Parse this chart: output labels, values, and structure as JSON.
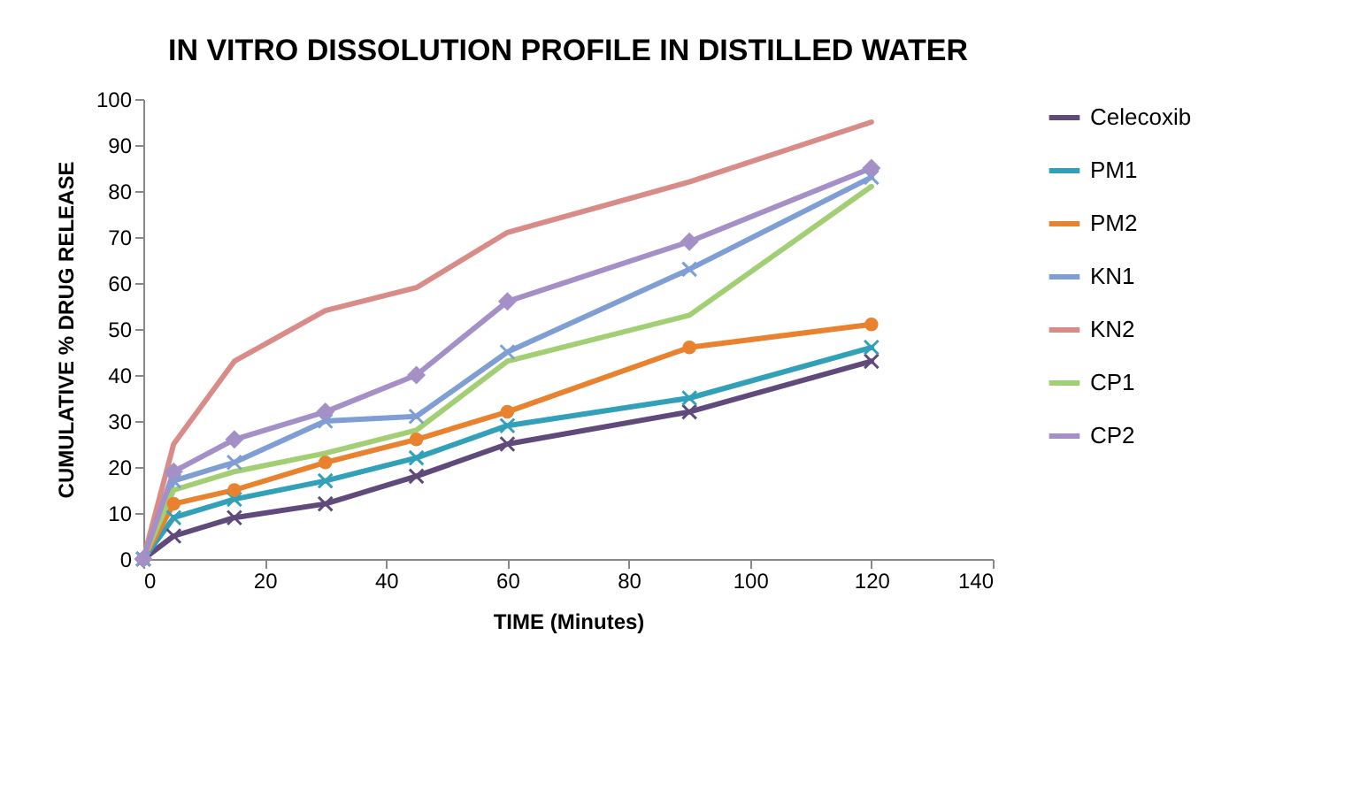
{
  "chart_data": {
    "type": "line",
    "title": "IN VITRO DISSOLUTION PROFILE IN DISTILLED WATER",
    "xlabel": "TIME (Minutes)",
    "ylabel": "CUMULATIVE  %  DRUG RELEASE",
    "x": [
      0,
      5,
      15,
      30,
      45,
      60,
      90,
      120
    ],
    "series": [
      {
        "name": "Celecoxib",
        "color": "#604a7b",
        "marker": "cross",
        "values": [
          0,
          5,
          9,
          12,
          18,
          25,
          32,
          43
        ]
      },
      {
        "name": "PM1",
        "color": "#31a0b8",
        "marker": "cross",
        "values": [
          0,
          9,
          13,
          17,
          22,
          29,
          35,
          46
        ]
      },
      {
        "name": "PM2",
        "color": "#e8822f",
        "marker": "circle",
        "values": [
          0,
          12,
          15,
          21,
          26,
          32,
          46,
          51
        ]
      },
      {
        "name": "KN1",
        "color": "#7f9fd4",
        "marker": "cross",
        "values": [
          0,
          17,
          21,
          30,
          31,
          45,
          63,
          83
        ]
      },
      {
        "name": "KN2",
        "color": "#d98b88",
        "marker": "none",
        "values": [
          0,
          25,
          43,
          54,
          59,
          71,
          82,
          95
        ]
      },
      {
        "name": "CP1",
        "color": "#a3cf74",
        "marker": "none",
        "values": [
          0,
          15,
          19,
          23,
          28,
          43,
          53,
          81
        ]
      },
      {
        "name": "CP2",
        "color": "#a48fc6",
        "marker": "diamond",
        "values": [
          0,
          19,
          26,
          32,
          40,
          56,
          69,
          85
        ]
      }
    ],
    "xlim": [
      0,
      140
    ],
    "xticks": [
      0,
      20,
      40,
      60,
      80,
      100,
      120,
      140
    ],
    "ylim": [
      0,
      100
    ],
    "yticks": [
      0,
      10,
      20,
      30,
      40,
      50,
      60,
      70,
      80,
      90,
      100
    ],
    "grid": false,
    "legend": "right"
  }
}
